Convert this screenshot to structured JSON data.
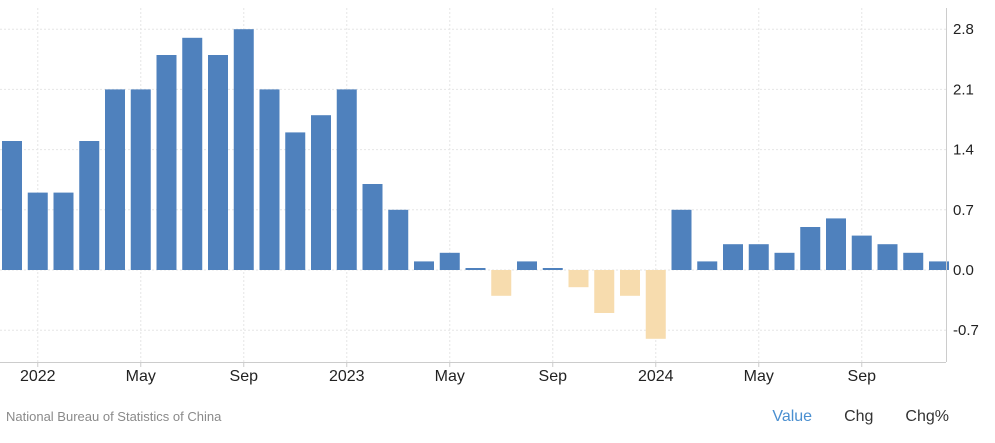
{
  "colors": {
    "positive": "#4f81bd",
    "negative": "#f7dcae",
    "grid": "#e6e6e6",
    "axis_text": "#222222",
    "active_tab": "#4a8fd0"
  },
  "footer": {
    "source": "National Bureau of Statistics of China",
    "tabs": [
      {
        "label": "Value",
        "active": true
      },
      {
        "label": "Chg",
        "active": false
      },
      {
        "label": "Chg%",
        "active": false
      }
    ]
  },
  "chart_data": {
    "type": "bar",
    "categories": [
      "2021-12",
      "2022-01",
      "2022-02",
      "2022-03",
      "2022-04",
      "2022-05",
      "2022-06",
      "2022-07",
      "2022-08",
      "2022-09",
      "2022-10",
      "2022-11",
      "2022-12",
      "2023-01",
      "2023-02",
      "2023-03",
      "2023-04",
      "2023-05",
      "2023-06",
      "2023-07",
      "2023-08",
      "2023-09",
      "2023-10",
      "2023-11",
      "2023-12",
      "2024-01",
      "2024-02",
      "2024-03",
      "2024-04",
      "2024-05",
      "2024-06",
      "2024-07",
      "2024-08",
      "2024-09",
      "2024-10",
      "2024-11",
      "2024-12"
    ],
    "values": [
      1.5,
      0.9,
      0.9,
      1.5,
      2.1,
      2.1,
      2.5,
      2.7,
      2.5,
      2.8,
      2.1,
      1.6,
      1.8,
      2.1,
      1.0,
      0.7,
      0.1,
      0.2,
      0.0,
      -0.3,
      0.1,
      0.0,
      -0.2,
      -0.5,
      -0.3,
      -0.8,
      0.7,
      0.1,
      0.3,
      0.3,
      0.2,
      0.5,
      0.6,
      0.4,
      0.3,
      0.2,
      0.1
    ],
    "x_tick_labels": [
      {
        "index": 1,
        "label": "2022"
      },
      {
        "index": 5,
        "label": "May"
      },
      {
        "index": 9,
        "label": "Sep"
      },
      {
        "index": 13,
        "label": "2023"
      },
      {
        "index": 17,
        "label": "May"
      },
      {
        "index": 21,
        "label": "Sep"
      },
      {
        "index": 25,
        "label": "2024"
      },
      {
        "index": 29,
        "label": "May"
      },
      {
        "index": 33,
        "label": "Sep"
      }
    ],
    "y_ticks": [
      "2.8",
      "2.1",
      "1.4",
      "0.7",
      "0.0",
      "-0.7"
    ],
    "ylim": [
      -1.1,
      3.0
    ],
    "grid": true,
    "y_axis_position": "right"
  }
}
